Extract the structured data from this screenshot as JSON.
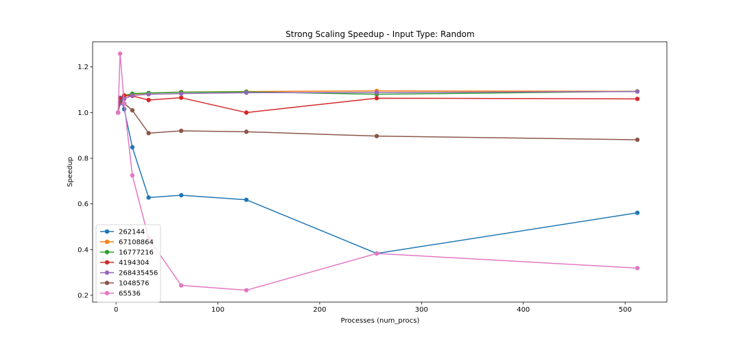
{
  "chart_data": {
    "type": "line",
    "title": "Strong Scaling Speedup - Input Type: Random",
    "xlabel": "Processes (num_procs)",
    "ylabel": "Speedup",
    "xlim": [
      -23,
      541
    ],
    "ylim": [
      0.17,
      1.31
    ],
    "xticks": [
      0,
      100,
      200,
      300,
      400,
      500
    ],
    "yticks": [
      0.2,
      0.4,
      0.6,
      0.8,
      1.0,
      1.2
    ],
    "xtick_labels": [
      "0",
      "100",
      "200",
      "300",
      "400",
      "500"
    ],
    "ytick_labels": [
      "0.2",
      "0.4",
      "0.6",
      "0.8",
      "1.0",
      "1.2"
    ],
    "grid": false,
    "legend_position": "lower-left",
    "x": [
      2,
      4,
      8,
      16,
      32,
      64,
      128,
      256,
      512
    ],
    "series": [
      {
        "name": "262144",
        "color": "#1f77b4",
        "values": [
          1.0,
          1.065,
          1.015,
          0.848,
          0.628,
          0.638,
          0.618,
          0.383,
          0.561
        ]
      },
      {
        "name": "67108864",
        "color": "#ff7f0e",
        "values": [
          1.0,
          1.05,
          1.07,
          1.08,
          1.085,
          1.09,
          1.092,
          1.095,
          1.093
        ]
      },
      {
        "name": "16777216",
        "color": "#2ca02c",
        "values": [
          1.0,
          1.055,
          1.075,
          1.083,
          1.086,
          1.089,
          1.091,
          1.08,
          1.093
        ]
      },
      {
        "name": "4194304",
        "color": "#d62728",
        "values": [
          1.0,
          1.06,
          1.075,
          1.073,
          1.055,
          1.065,
          1.0,
          1.063,
          1.06
        ]
      },
      {
        "name": "268435456",
        "color": "#9467bd",
        "values": [
          1.0,
          1.04,
          1.06,
          1.075,
          1.08,
          1.083,
          1.087,
          1.088,
          1.092
        ]
      },
      {
        "name": "1048576",
        "color": "#8c564b",
        "values": [
          1.0,
          1.05,
          1.04,
          1.01,
          0.91,
          0.92,
          0.916,
          0.897,
          0.881
        ]
      },
      {
        "name": "65536",
        "color": "#e377c2",
        "values": [
          1.0,
          1.258,
          1.04,
          0.725,
          0.45,
          0.243,
          0.222,
          0.383,
          0.319
        ]
      }
    ]
  }
}
